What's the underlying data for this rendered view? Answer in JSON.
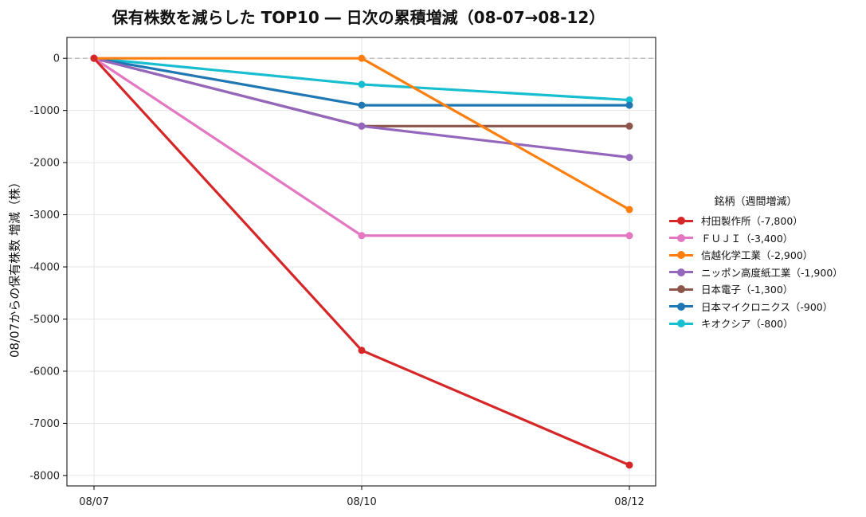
{
  "chart_data": {
    "type": "line",
    "title": "保有株数を減らした TOP10 ― 日次の累積増減（08-07→08-12）",
    "xlabel": "",
    "ylabel": "08/07からの保有株数 増減（株）",
    "categories": [
      "08/07",
      "08/10",
      "08/12"
    ],
    "ylim": [
      -8200,
      400
    ],
    "yticks": [
      0,
      -1000,
      -2000,
      -3000,
      -4000,
      -5000,
      -6000,
      -7000,
      -8000
    ],
    "grid": true,
    "zero_line": "dashed",
    "legend_title": "銘柄（週間増減）",
    "legend_position": "right",
    "series": [
      {
        "name": "村田製作所（-7,800）",
        "color": "#d62728",
        "values": [
          0,
          -5600,
          -7800
        ]
      },
      {
        "name": "ＦＵＪＩ（-3,400）",
        "color": "#e377c2",
        "values": [
          0,
          -3400,
          -3400
        ]
      },
      {
        "name": "信越化学工業（-2,900）",
        "color": "#ff7f0e",
        "values": [
          0,
          0,
          -2900
        ]
      },
      {
        "name": "ニッポン高度紙工業（-1,900）",
        "color": "#9467bd",
        "values": [
          0,
          -1300,
          -1900
        ]
      },
      {
        "name": "日本電子（-1,300）",
        "color": "#8c564b",
        "values": [
          0,
          -1300,
          -1300
        ]
      },
      {
        "name": "日本マイクロニクス（-900）",
        "color": "#1f77b4",
        "values": [
          0,
          -900,
          -900
        ]
      },
      {
        "name": "キオクシア（-800）",
        "color": "#17becf",
        "values": [
          0,
          -500,
          -800
        ]
      }
    ]
  }
}
